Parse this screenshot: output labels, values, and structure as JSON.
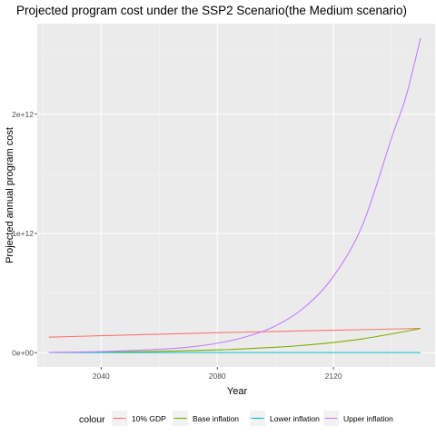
{
  "chart_data": {
    "type": "line",
    "title": "Projected program cost under the SSP2 Scenario(the Medium scenario)",
    "xlabel": "Year",
    "ylabel": "Projected annual program cost",
    "xlim": [
      2018,
      2155
    ],
    "ylim": [
      -120000000000,
      2760000000000
    ],
    "x_ticks": [
      2040,
      2080,
      2120
    ],
    "x_minor_ticks": [
      2020,
      2060,
      2100,
      2140
    ],
    "y_ticks": [
      0,
      1000000000000,
      2000000000000
    ],
    "y_tick_labels": [
      "0e+00",
      "1e+12",
      "2e+12"
    ],
    "y_minor_ticks": [
      500000000000,
      1500000000000,
      2500000000000
    ],
    "grid": true,
    "legend": {
      "position": "bottom",
      "title": "colour",
      "entries": [
        "10% GDP",
        "Base inflation",
        "Lower inflation",
        "Upper inflation"
      ]
    },
    "series": [
      {
        "name": "10% GDP",
        "color": "#F8766D",
        "x": [
          2022,
          2040,
          2060,
          2080,
          2100,
          2120,
          2140,
          2150
        ],
        "y": [
          130000000000,
          142000000000,
          155000000000,
          167000000000,
          178000000000,
          188000000000,
          198000000000,
          203000000000
        ]
      },
      {
        "name": "Base inflation",
        "color": "#7CAE00",
        "x": [
          2022,
          2040,
          2060,
          2080,
          2100,
          2110,
          2120,
          2130,
          2140,
          2150
        ],
        "y": [
          2000000000,
          5000000000,
          11000000000,
          23000000000,
          45000000000,
          62000000000,
          85000000000,
          116000000000,
          157000000000,
          203000000000
        ]
      },
      {
        "name": "Lower inflation",
        "color": "#00BFC4",
        "x": [
          2022,
          2060,
          2100,
          2150
        ],
        "y": [
          1000000000,
          1000000000,
          1000000000,
          1000000000
        ]
      },
      {
        "name": "Upper inflation",
        "color": "#C77CFF",
        "x": [
          2022,
          2040,
          2060,
          2070,
          2080,
          2090,
          2100,
          2110,
          2120,
          2130,
          2140,
          2145,
          2150
        ],
        "y": [
          2000000000,
          9000000000,
          28000000000,
          46000000000,
          79000000000,
          134000000000,
          224000000000,
          380000000000,
          640000000000,
          1070000000000,
          1800000000000,
          2150000000000,
          2640000000000
        ]
      }
    ]
  }
}
